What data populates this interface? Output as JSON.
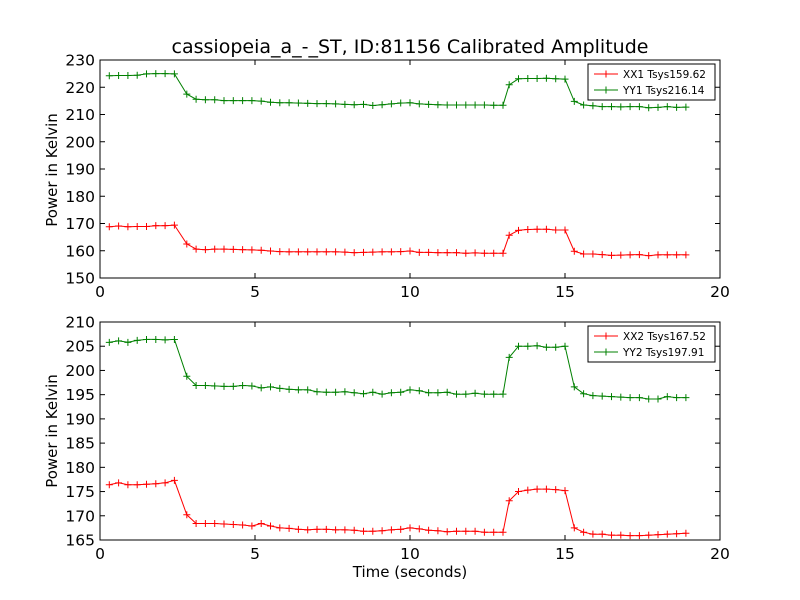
{
  "title": "cassiopeia_a_-_ST, ID:81156 Calibrated Amplitude",
  "colors": {
    "red": "#ff0000",
    "green": "#008000"
  },
  "chart_data": [
    {
      "type": "line",
      "xlabel": "",
      "ylabel": "Power in Kelvin",
      "xlim": [
        0,
        20
      ],
      "ylim": [
        150,
        230
      ],
      "xticks": [
        "0",
        "5",
        "10",
        "15",
        "20"
      ],
      "yticks": [
        "150",
        "160",
        "170",
        "180",
        "190",
        "200",
        "210",
        "220",
        "230"
      ],
      "grid": false,
      "legend_position": "top-right",
      "x": [
        0.3,
        0.6,
        0.9,
        1.2,
        1.5,
        1.8,
        2.1,
        2.4,
        2.8,
        3.1,
        3.4,
        3.7,
        4.0,
        4.3,
        4.6,
        4.9,
        5.2,
        5.5,
        5.8,
        6.1,
        6.4,
        6.7,
        7.0,
        7.3,
        7.6,
        7.9,
        8.2,
        8.5,
        8.8,
        9.1,
        9.4,
        9.7,
        10.0,
        10.3,
        10.6,
        10.9,
        11.2,
        11.5,
        11.8,
        12.1,
        12.4,
        12.7,
        13.0,
        13.2,
        13.5,
        13.8,
        14.1,
        14.4,
        14.7,
        15.0,
        15.3,
        15.6,
        15.9,
        16.2,
        16.5,
        16.8,
        17.1,
        17.4,
        17.7,
        18.0,
        18.3,
        18.6,
        18.9
      ],
      "series": [
        {
          "name": "XX1 Tsys159.62",
          "color": "#ff0000",
          "values": [
            168.8,
            169.1,
            168.8,
            168.9,
            168.9,
            169.2,
            169.2,
            169.4,
            162.5,
            160.6,
            160.4,
            160.6,
            160.6,
            160.5,
            160.4,
            160.3,
            160.2,
            159.9,
            159.7,
            159.6,
            159.6,
            159.6,
            159.6,
            159.6,
            159.6,
            159.5,
            159.3,
            159.4,
            159.5,
            159.6,
            159.6,
            159.7,
            159.9,
            159.4,
            159.4,
            159.3,
            159.3,
            159.3,
            159.1,
            159.2,
            159.1,
            159.1,
            159.1,
            165.7,
            167.5,
            167.8,
            167.9,
            167.9,
            167.6,
            167.6,
            159.8,
            158.8,
            158.8,
            158.6,
            158.3,
            158.4,
            158.5,
            158.6,
            158.2,
            158.5,
            158.5,
            158.5,
            158.5
          ]
        },
        {
          "name": "YY1 Tsys216.14",
          "color": "#008000",
          "values": [
            224.2,
            224.3,
            224.3,
            224.4,
            224.9,
            225.0,
            225.0,
            224.9,
            217.5,
            215.6,
            215.4,
            215.4,
            215.1,
            215.1,
            215.1,
            215.1,
            214.9,
            214.5,
            214.3,
            214.3,
            214.2,
            214.1,
            214.0,
            214.0,
            213.9,
            213.7,
            213.6,
            213.7,
            213.3,
            213.6,
            213.9,
            214.2,
            214.3,
            213.9,
            213.7,
            213.6,
            213.5,
            213.5,
            213.5,
            213.5,
            213.5,
            213.4,
            213.4,
            220.9,
            223.1,
            223.2,
            223.2,
            223.3,
            223.1,
            223.0,
            214.8,
            213.5,
            213.2,
            212.9,
            212.9,
            212.8,
            212.9,
            212.9,
            212.5,
            212.6,
            212.9,
            212.6,
            212.7
          ]
        }
      ]
    },
    {
      "type": "line",
      "xlabel": "Time (seconds)",
      "ylabel": "Power in Kelvin",
      "xlim": [
        0,
        20
      ],
      "ylim": [
        165,
        210
      ],
      "xticks": [
        "0",
        "5",
        "10",
        "15",
        "20"
      ],
      "yticks": [
        "165",
        "170",
        "175",
        "180",
        "185",
        "190",
        "195",
        "200",
        "205",
        "210"
      ],
      "grid": false,
      "legend_position": "top-right",
      "x": [
        0.3,
        0.6,
        0.9,
        1.2,
        1.5,
        1.8,
        2.1,
        2.4,
        2.8,
        3.1,
        3.4,
        3.7,
        4.0,
        4.3,
        4.6,
        4.9,
        5.2,
        5.5,
        5.8,
        6.1,
        6.4,
        6.7,
        7.0,
        7.3,
        7.6,
        7.9,
        8.2,
        8.5,
        8.8,
        9.1,
        9.4,
        9.7,
        10.0,
        10.3,
        10.6,
        10.9,
        11.2,
        11.5,
        11.8,
        12.1,
        12.4,
        12.7,
        13.0,
        13.2,
        13.5,
        13.8,
        14.1,
        14.4,
        14.7,
        15.0,
        15.3,
        15.6,
        15.9,
        16.2,
        16.5,
        16.8,
        17.1,
        17.4,
        17.7,
        18.0,
        18.3,
        18.6,
        18.9
      ],
      "series": [
        {
          "name": "XX2 Tsys167.52",
          "color": "#ff0000",
          "values": [
            176.4,
            176.8,
            176.4,
            176.4,
            176.5,
            176.6,
            176.8,
            177.3,
            170.2,
            168.4,
            168.4,
            168.4,
            168.3,
            168.2,
            168.1,
            167.9,
            168.4,
            167.9,
            167.5,
            167.4,
            167.2,
            167.1,
            167.2,
            167.2,
            167.1,
            167.1,
            167.0,
            166.8,
            166.8,
            166.9,
            167.1,
            167.2,
            167.5,
            167.3,
            167.0,
            166.9,
            166.7,
            166.8,
            166.8,
            166.8,
            166.6,
            166.6,
            166.6,
            173.1,
            175.0,
            175.3,
            175.5,
            175.5,
            175.4,
            175.2,
            167.5,
            166.6,
            166.2,
            166.2,
            166.0,
            166.0,
            165.9,
            165.9,
            166.0,
            166.1,
            166.2,
            166.3,
            166.4
          ]
        },
        {
          "name": "YY2 Tsys197.91",
          "color": "#008000",
          "values": [
            205.8,
            206.1,
            205.8,
            206.2,
            206.4,
            206.4,
            206.3,
            206.4,
            198.8,
            196.9,
            196.9,
            196.8,
            196.7,
            196.7,
            196.9,
            196.8,
            196.4,
            196.6,
            196.3,
            196.1,
            196.0,
            196.0,
            195.6,
            195.5,
            195.5,
            195.6,
            195.4,
            195.2,
            195.5,
            195.1,
            195.4,
            195.5,
            196.0,
            195.8,
            195.4,
            195.4,
            195.5,
            195.1,
            195.1,
            195.3,
            195.1,
            195.1,
            195.1,
            202.7,
            205.0,
            205.0,
            205.1,
            204.8,
            204.8,
            205.0,
            196.6,
            195.2,
            194.8,
            194.7,
            194.6,
            194.5,
            194.4,
            194.4,
            194.1,
            194.1,
            194.6,
            194.4,
            194.4
          ]
        }
      ]
    }
  ]
}
